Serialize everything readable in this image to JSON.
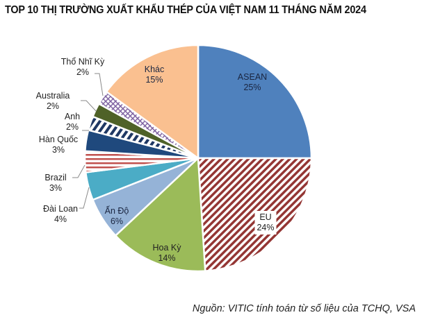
{
  "chart_data": {
    "type": "pie",
    "title": "TOP 10 THỊ TRƯỜNG XUẤT KHẨU THÉP CỦA VIỆT NAM 11 THÁNG NĂM 2024",
    "start_angle": "12 o'clock, clockwise",
    "categories": [
      "ASEAN",
      "EU",
      "Hoa Kỳ",
      "Ấn Độ",
      "Đài Loan",
      "Brazil",
      "Hàn Quốc",
      "Anh",
      "Australia",
      "Thổ Nhĩ Kỳ",
      "Khác"
    ],
    "values": [
      25,
      24,
      14,
      6,
      4,
      3,
      3,
      2,
      2,
      2,
      15
    ],
    "unit": "%",
    "slices": [
      {
        "label": "ASEAN",
        "value": 25,
        "pct": "25%",
        "color": "#4f81bd",
        "pattern": "solid"
      },
      {
        "label": "EU",
        "value": 24,
        "pct": "24%",
        "color": "#943634",
        "pattern": "diagonal-stripes"
      },
      {
        "label": "Hoa Kỳ",
        "value": 14,
        "pct": "14%",
        "color": "#9bbb59",
        "pattern": "solid"
      },
      {
        "label": "Ấn Độ",
        "value": 6,
        "pct": "6%",
        "color": "#95b3d7",
        "pattern": "solid"
      },
      {
        "label": "Đài Loan",
        "value": 4,
        "pct": "4%",
        "color": "#4bacc6",
        "pattern": "solid"
      },
      {
        "label": "Brazil",
        "value": 3,
        "pct": "3%",
        "color": "#c0504d",
        "pattern": "horizontal-stripes"
      },
      {
        "label": "Hàn Quốc",
        "value": 3,
        "pct": "3%",
        "color": "#1f497d",
        "pattern": "solid"
      },
      {
        "label": "Anh",
        "value": 2,
        "pct": "2%",
        "color": "#1f3864",
        "pattern": "wide-diagonal-stripes"
      },
      {
        "label": "Australia",
        "value": 2,
        "pct": "2%",
        "color": "#4f6228",
        "pattern": "solid"
      },
      {
        "label": "Thổ Nhĩ Kỳ",
        "value": 2,
        "pct": "2%",
        "color": "#8064a2",
        "pattern": "crosshatch"
      },
      {
        "label": "Khác",
        "value": 15,
        "pct": "15%",
        "color": "#fac090",
        "pattern": "solid"
      }
    ],
    "source": "Nguồn: VITIC tính toán từ số liệu của TCHQ, VSA"
  }
}
